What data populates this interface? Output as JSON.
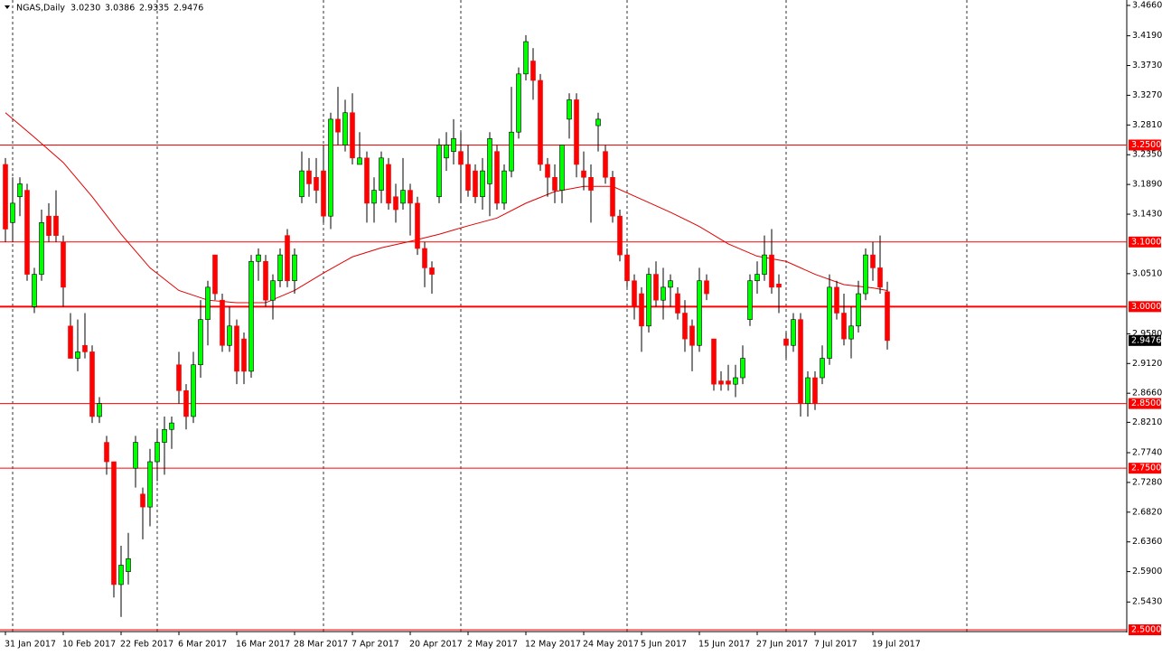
{
  "chart_data": {
    "type": "candlestick",
    "title": "NGAS,Daily",
    "header_values": [
      {
        "value": 3.023,
        "label": "3.0230"
      },
      {
        "value": 3.0386,
        "label": "3.0386"
      },
      {
        "value": 2.9335,
        "label": "2.9335"
      },
      {
        "value": 2.9476,
        "label": "2.9476"
      }
    ],
    "categories": [
      "31 Jan 2017",
      null,
      null,
      null,
      null,
      null,
      null,
      null,
      "10 Feb 2017",
      null,
      null,
      null,
      null,
      null,
      null,
      null,
      "22 Feb 2017",
      null,
      null,
      null,
      null,
      null,
      null,
      null,
      "6 Mar 2017",
      null,
      null,
      null,
      null,
      null,
      null,
      null,
      "16 Mar 2017",
      null,
      null,
      null,
      null,
      null,
      null,
      null,
      "28 Mar 2017",
      null,
      null,
      null,
      null,
      null,
      null,
      null,
      "7 Apr 2017",
      null,
      null,
      null,
      null,
      null,
      null,
      null,
      "20 Apr 2017",
      null,
      null,
      null,
      null,
      null,
      null,
      null,
      "2 May 2017",
      null,
      null,
      null,
      null,
      null,
      null,
      null,
      "12 May 2017",
      null,
      null,
      null,
      null,
      null,
      null,
      null,
      "24 May 2017",
      null,
      null,
      null,
      null,
      null,
      null,
      null,
      "5 Jun 2017",
      null,
      null,
      null,
      null,
      null,
      null,
      null,
      "15 Jun 2017",
      null,
      null,
      null,
      null,
      null,
      null,
      null,
      "27 Jun 2017",
      null,
      null,
      null,
      null,
      null,
      null,
      null,
      "7 Jul 2017",
      null,
      null,
      null,
      null,
      null,
      null,
      null,
      "19 Jul 2017",
      null,
      null
    ],
    "open": [
      3.22,
      3.13,
      3.17,
      3.18,
      3.0,
      3.05,
      3.14,
      3.14,
      3.1,
      2.97,
      2.92,
      2.94,
      2.93,
      2.83,
      2.79,
      2.76,
      2.57,
      2.59,
      2.75,
      2.71,
      2.69,
      2.76,
      2.79,
      2.81,
      2.91,
      2.87,
      2.83,
      2.91,
      2.98,
      3.08,
      3.01,
      2.94,
      2.97,
      2.95,
      2.9,
      3.07,
      3.07,
      3.01,
      3.04,
      3.11,
      3.04,
      3.17,
      3.21,
      3.2,
      3.21,
      3.14,
      3.29,
      3.25,
      3.3,
      3.22,
      3.23,
      3.16,
      3.18,
      3.22,
      3.17,
      3.16,
      3.18,
      3.16,
      3.09,
      3.06,
      3.17,
      3.23,
      3.24,
      3.24,
      3.22,
      3.21,
      3.17,
      3.19,
      3.24,
      3.16,
      3.21,
      3.27,
      3.36,
      3.38,
      3.35,
      3.22,
      3.2,
      3.18,
      3.29,
      3.32,
      3.21,
      3.2,
      3.28,
      3.24,
      3.2,
      3.14,
      3.08,
      3.04,
      3.02,
      2.97,
      3.05,
      3.01,
      3.03,
      3.02,
      2.99,
      2.97,
      2.94,
      3.04,
      2.95,
      2.885,
      2.885,
      2.88,
      2.89,
      2.98,
      3.04,
      3.05,
      3.08,
      3.035,
      2.95,
      2.94,
      2.98,
      2.85,
      2.89,
      2.89,
      2.92,
      3.03,
      2.99,
      2.95,
      2.97,
      3.02,
      3.08,
      3.06,
      3.023
    ],
    "high": [
      3.23,
      3.2,
      3.2,
      3.19,
      3.06,
      3.15,
      3.16,
      3.18,
      3.11,
      2.99,
      2.98,
      2.99,
      2.94,
      2.86,
      2.8,
      2.76,
      2.63,
      2.65,
      2.8,
      2.72,
      2.78,
      2.81,
      2.83,
      2.83,
      2.93,
      2.88,
      2.93,
      3.01,
      3.04,
      3.08,
      3.02,
      3.0,
      2.98,
      2.96,
      3.08,
      3.09,
      3.08,
      3.05,
      3.09,
      3.12,
      3.09,
      3.24,
      3.23,
      3.23,
      3.25,
      3.3,
      3.34,
      3.32,
      3.33,
      3.27,
      3.24,
      3.2,
      3.24,
      3.23,
      3.19,
      3.23,
      3.19,
      3.17,
      3.1,
      3.07,
      3.26,
      3.27,
      3.29,
      3.27,
      3.25,
      3.22,
      3.23,
      3.27,
      3.25,
      3.22,
      3.34,
      3.37,
      3.42,
      3.4,
      3.36,
      3.23,
      3.22,
      3.25,
      3.33,
      3.33,
      3.24,
      3.22,
      3.3,
      3.25,
      3.21,
      3.15,
      3.09,
      3.05,
      3.03,
      3.06,
      3.07,
      3.06,
      3.05,
      3.03,
      3.01,
      2.98,
      3.06,
      3.05,
      2.95,
      2.9,
      2.91,
      2.91,
      2.94,
      3.05,
      3.07,
      3.11,
      3.12,
      3.05,
      2.96,
      2.99,
      2.99,
      2.9,
      2.9,
      2.94,
      3.05,
      3.04,
      3.02,
      3.0,
      3.04,
      3.09,
      3.1,
      3.11,
      3.0386
    ],
    "low": [
      3.1,
      3.1,
      3.14,
      3.04,
      2.99,
      3.04,
      3.1,
      3.1,
      3.0,
      2.92,
      2.9,
      2.92,
      2.82,
      2.82,
      2.74,
      2.55,
      2.52,
      2.57,
      2.72,
      2.64,
      2.66,
      2.73,
      2.74,
      2.78,
      2.85,
      2.81,
      2.82,
      2.89,
      2.94,
      3.01,
      2.93,
      2.93,
      2.88,
      2.88,
      2.89,
      3.04,
      3.0,
      2.98,
      3.03,
      3.03,
      3.02,
      3.16,
      3.17,
      3.16,
      3.13,
      3.12,
      3.25,
      3.24,
      3.22,
      3.22,
      3.13,
      3.13,
      3.16,
      3.15,
      3.13,
      3.15,
      3.11,
      3.08,
      3.03,
      3.02,
      3.16,
      3.21,
      3.22,
      3.16,
      3.17,
      3.16,
      3.15,
      3.14,
      3.15,
      3.15,
      3.2,
      3.26,
      3.35,
      3.32,
      3.21,
      3.17,
      3.16,
      3.16,
      3.26,
      3.2,
      3.18,
      3.13,
      3.24,
      3.19,
      3.13,
      3.07,
      3.03,
      2.98,
      2.93,
      2.96,
      3.0,
      2.98,
      3.0,
      2.98,
      2.93,
      2.9,
      2.93,
      3.01,
      2.87,
      2.87,
      2.87,
      2.86,
      2.88,
      2.97,
      3.02,
      3.04,
      3.02,
      2.99,
      2.92,
      2.93,
      2.83,
      2.83,
      2.84,
      2.88,
      2.91,
      2.98,
      2.94,
      2.92,
      2.96,
      3.01,
      3.04,
      3.02,
      2.9335
    ],
    "close": [
      3.12,
      3.16,
      3.19,
      3.05,
      3.05,
      3.13,
      3.11,
      3.11,
      3.03,
      2.92,
      2.93,
      2.93,
      2.83,
      2.85,
      2.76,
      2.57,
      2.6,
      2.61,
      2.79,
      2.69,
      2.76,
      2.79,
      2.81,
      2.82,
      2.87,
      2.83,
      2.91,
      2.98,
      3.03,
      3.02,
      2.94,
      2.97,
      2.9,
      2.9,
      3.07,
      3.08,
      3.01,
      3.04,
      3.08,
      3.04,
      3.08,
      3.21,
      3.19,
      3.18,
      3.14,
      3.29,
      3.27,
      3.3,
      3.23,
      3.23,
      3.16,
      3.18,
      3.23,
      3.16,
      3.15,
      3.18,
      3.16,
      3.09,
      3.06,
      3.05,
      3.25,
      3.25,
      3.26,
      3.22,
      3.18,
      3.17,
      3.21,
      3.26,
      3.16,
      3.21,
      3.27,
      3.36,
      3.41,
      3.35,
      3.22,
      3.2,
      3.18,
      3.25,
      3.32,
      3.22,
      3.2,
      3.18,
      3.29,
      3.2,
      3.14,
      3.08,
      3.04,
      3.0,
      2.97,
      3.05,
      3.01,
      3.03,
      3.04,
      2.99,
      2.95,
      2.94,
      3.04,
      3.02,
      2.88,
      2.88,
      2.88,
      2.89,
      2.92,
      3.04,
      3.05,
      3.08,
      3.03,
      3.03,
      2.94,
      2.98,
      2.85,
      2.89,
      2.85,
      2.92,
      3.03,
      2.99,
      2.95,
      2.97,
      3.02,
      3.08,
      3.06,
      3.03,
      2.9476
    ],
    "up_color": "#00ff00",
    "down_color": "#ff0000",
    "moving_average": {
      "color": "#e00000",
      "x": [
        0,
        4,
        8,
        12,
        16,
        20,
        24,
        28,
        32,
        36,
        40,
        44,
        48,
        52,
        56,
        60,
        64,
        68,
        72,
        76,
        80,
        84,
        88,
        92,
        96,
        100,
        104,
        108,
        112,
        116,
        120,
        122
      ],
      "values": [
        3.3,
        3.262,
        3.223,
        3.17,
        3.112,
        3.06,
        3.025,
        3.01,
        3.006,
        3.006,
        3.025,
        3.052,
        3.077,
        3.091,
        3.101,
        3.112,
        3.125,
        3.137,
        3.16,
        3.178,
        3.186,
        3.186,
        3.166,
        3.146,
        3.124,
        3.097,
        3.078,
        3.07,
        3.05,
        3.034,
        3.029,
        3.025
      ]
    },
    "levels": [
      {
        "value": 3.25,
        "label": "3.2500",
        "width": 1
      },
      {
        "value": 3.1,
        "label": "3.1000",
        "width": 1
      },
      {
        "value": 3.0,
        "label": "3.0000",
        "width": 2
      },
      {
        "value": 2.85,
        "label": "2.8500",
        "width": 1
      },
      {
        "value": 2.75,
        "label": "2.7500",
        "width": 1
      },
      {
        "value": 2.5,
        "label": "2.5000",
        "width": 1
      }
    ],
    "level_color": "#ff0000",
    "current_price": 2.9476,
    "period_separators": [
      1,
      21,
      44,
      63,
      86,
      108,
      133
    ],
    "ylim": [
      2.5,
      3.466
    ],
    "yticks": [
      {
        "value": 3.466,
        "label": "3.4660"
      },
      {
        "value": 3.419,
        "label": "3.4190"
      },
      {
        "value": 3.373,
        "label": "3.3730"
      },
      {
        "value": 3.327,
        "label": "3.3270"
      },
      {
        "value": 3.281,
        "label": "3.2810"
      },
      {
        "value": 3.235,
        "label": "3.2350"
      },
      {
        "value": 3.189,
        "label": "3.1890"
      },
      {
        "value": 3.143,
        "label": "3.1430"
      },
      {
        "value": 3.051,
        "label": "3.0510"
      },
      {
        "value": 2.958,
        "label": "2.9580"
      },
      {
        "value": 2.912,
        "label": "2.9120"
      },
      {
        "value": 2.866,
        "label": "2.8660"
      },
      {
        "value": 2.821,
        "label": "2.8210"
      },
      {
        "value": 2.774,
        "label": "2.7740"
      },
      {
        "value": 2.728,
        "label": "2.7280"
      },
      {
        "value": 2.682,
        "label": "2.6820"
      },
      {
        "value": 2.636,
        "label": "2.6360"
      },
      {
        "value": 2.59,
        "label": "2.5900"
      },
      {
        "value": 2.543,
        "label": "2.5430"
      }
    ]
  }
}
